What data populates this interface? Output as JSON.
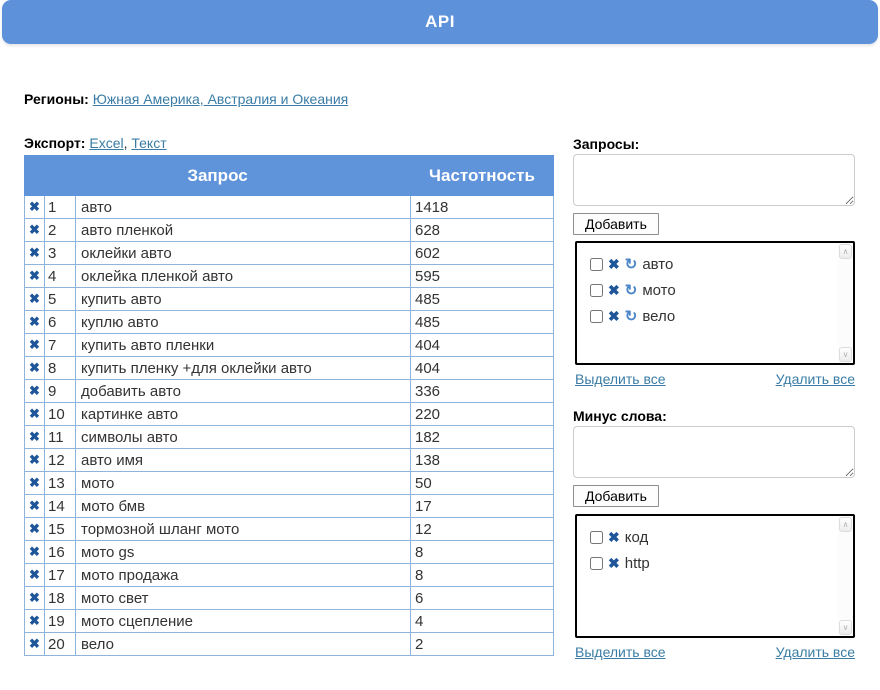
{
  "header": {
    "title": "API"
  },
  "regions": {
    "label": "Регионы:",
    "link": "Южная Америка, Австралия и Океания"
  },
  "export": {
    "label": "Экспорт:",
    "excel_link": "Excel",
    "separator": ",",
    "text_link": "Текст"
  },
  "icons": {
    "delete": "✖",
    "refresh": "↻",
    "scroll_up": "∧",
    "scroll_down": "∨"
  },
  "colors": {
    "banner_blue": "#5d91da",
    "table_header_blue": "#5f93da",
    "table_border_blue": "#8fb4dc",
    "x_icon_blue": "#1e5699",
    "refresh_icon_blue": "#4a86c8",
    "link_blue": "#3a7ca5"
  },
  "table": {
    "header_query": "Запрос",
    "header_frequency": "Частотность",
    "rows": [
      {
        "num": "1",
        "query": "авто",
        "frequency": "1418"
      },
      {
        "num": "2",
        "query": "авто пленкой",
        "frequency": "628"
      },
      {
        "num": "3",
        "query": "оклейки авто",
        "frequency": "602"
      },
      {
        "num": "4",
        "query": "оклейка пленкой авто",
        "frequency": "595"
      },
      {
        "num": "5",
        "query": "купить авто",
        "frequency": "485"
      },
      {
        "num": "6",
        "query": "куплю авто",
        "frequency": "485"
      },
      {
        "num": "7",
        "query": "купить авто пленки",
        "frequency": "404"
      },
      {
        "num": "8",
        "query": "купить пленку +для оклейки авто",
        "frequency": "404"
      },
      {
        "num": "9",
        "query": "добавить авто",
        "frequency": "336"
      },
      {
        "num": "10",
        "query": "картинке авто",
        "frequency": "220"
      },
      {
        "num": "11",
        "query": "символы авто",
        "frequency": "182"
      },
      {
        "num": "12",
        "query": "авто имя",
        "frequency": "138"
      },
      {
        "num": "13",
        "query": "мото",
        "frequency": "50"
      },
      {
        "num": "14",
        "query": "мото бмв",
        "frequency": "17"
      },
      {
        "num": "15",
        "query": "тормозной шланг мото",
        "frequency": "12"
      },
      {
        "num": "16",
        "query": "мото gs",
        "frequency": "8"
      },
      {
        "num": "17",
        "query": "мото продажа",
        "frequency": "8"
      },
      {
        "num": "18",
        "query": "мото свет",
        "frequency": "6"
      },
      {
        "num": "19",
        "query": "мото сцепление",
        "frequency": "4"
      },
      {
        "num": "20",
        "query": "вело",
        "frequency": "2"
      }
    ]
  },
  "queries_panel": {
    "label": "Запросы:",
    "textarea_value": "",
    "add_button": "Добавить",
    "items": [
      {
        "label": "авто"
      },
      {
        "label": "мото"
      },
      {
        "label": "вело"
      }
    ],
    "select_all": "Выделить все",
    "delete_all": "Удалить все"
  },
  "minus_panel": {
    "label": "Минус слова:",
    "textarea_value": "",
    "add_button": "Добавить",
    "items": [
      {
        "label": "код"
      },
      {
        "label": "http"
      }
    ],
    "select_all": "Выделить все",
    "delete_all": "Удалить все"
  }
}
